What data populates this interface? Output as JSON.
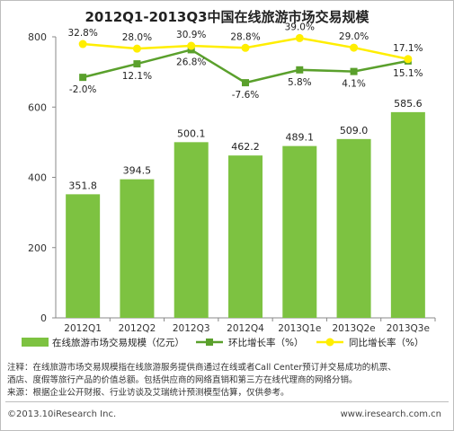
{
  "chart_data": {
    "type": "bar",
    "title": "2012Q1-2013Q3中国在线旅游市场交易规模",
    "categories": [
      "2012Q1",
      "2012Q2",
      "2012Q3",
      "2012Q4",
      "2013Q1e",
      "2013Q2e",
      "2013Q3e"
    ],
    "ylim": [
      0,
      800
    ],
    "yticks": [
      0,
      200,
      400,
      600,
      800
    ],
    "grid": false,
    "legend_position": "bottom",
    "series": [
      {
        "name": "在线旅游市场交易规模（亿元）",
        "type": "bar",
        "color": "#7dc241",
        "values": [
          351.8,
          394.5,
          500.1,
          462.2,
          489.1,
          509.0,
          585.6
        ],
        "labels": [
          "351.8",
          "394.5",
          "500.1",
          "462.2",
          "489.1",
          "509.0",
          "585.6"
        ]
      },
      {
        "name": "环比增长率（%）",
        "type": "line",
        "color": "#5aa02c",
        "values": [
          -2.0,
          12.1,
          26.8,
          -7.6,
          5.8,
          4.1,
          15.1
        ],
        "labels": [
          "-2.0%",
          "12.1%",
          "26.8%",
          "-7.6%",
          "5.8%",
          "4.1%",
          "15.1%"
        ]
      },
      {
        "name": "同比增长率（%）",
        "type": "line",
        "color": "#ffee00",
        "values": [
          32.8,
          28.0,
          30.9,
          28.8,
          39.0,
          29.0,
          17.1
        ],
        "labels": [
          "32.8%",
          "28.0%",
          "30.9%",
          "28.8%",
          "39.0%",
          "29.0%",
          "17.1%"
        ]
      }
    ]
  },
  "notes": [
    "注释：在线旅游市场交易规模指在线旅游服务提供商通过在线或者Call Center预订并交易成功的机票、",
    "酒店、度假等旅行产品的价值总额。包括供应商的网络直销和第三方在线代理商的网络分销。",
    "来源：根据企业公开财报、行业访谈及艾瑞统计预测模型估算，仅供参考。"
  ],
  "footer": {
    "copyright": "©2013.10iResearch Inc.",
    "website": "www.iresearch.com.cn"
  },
  "colors": {
    "bar": "#7dc241",
    "mom_line": "#5aa02c",
    "yoy_line": "#ffee00",
    "axis": "#888888"
  }
}
